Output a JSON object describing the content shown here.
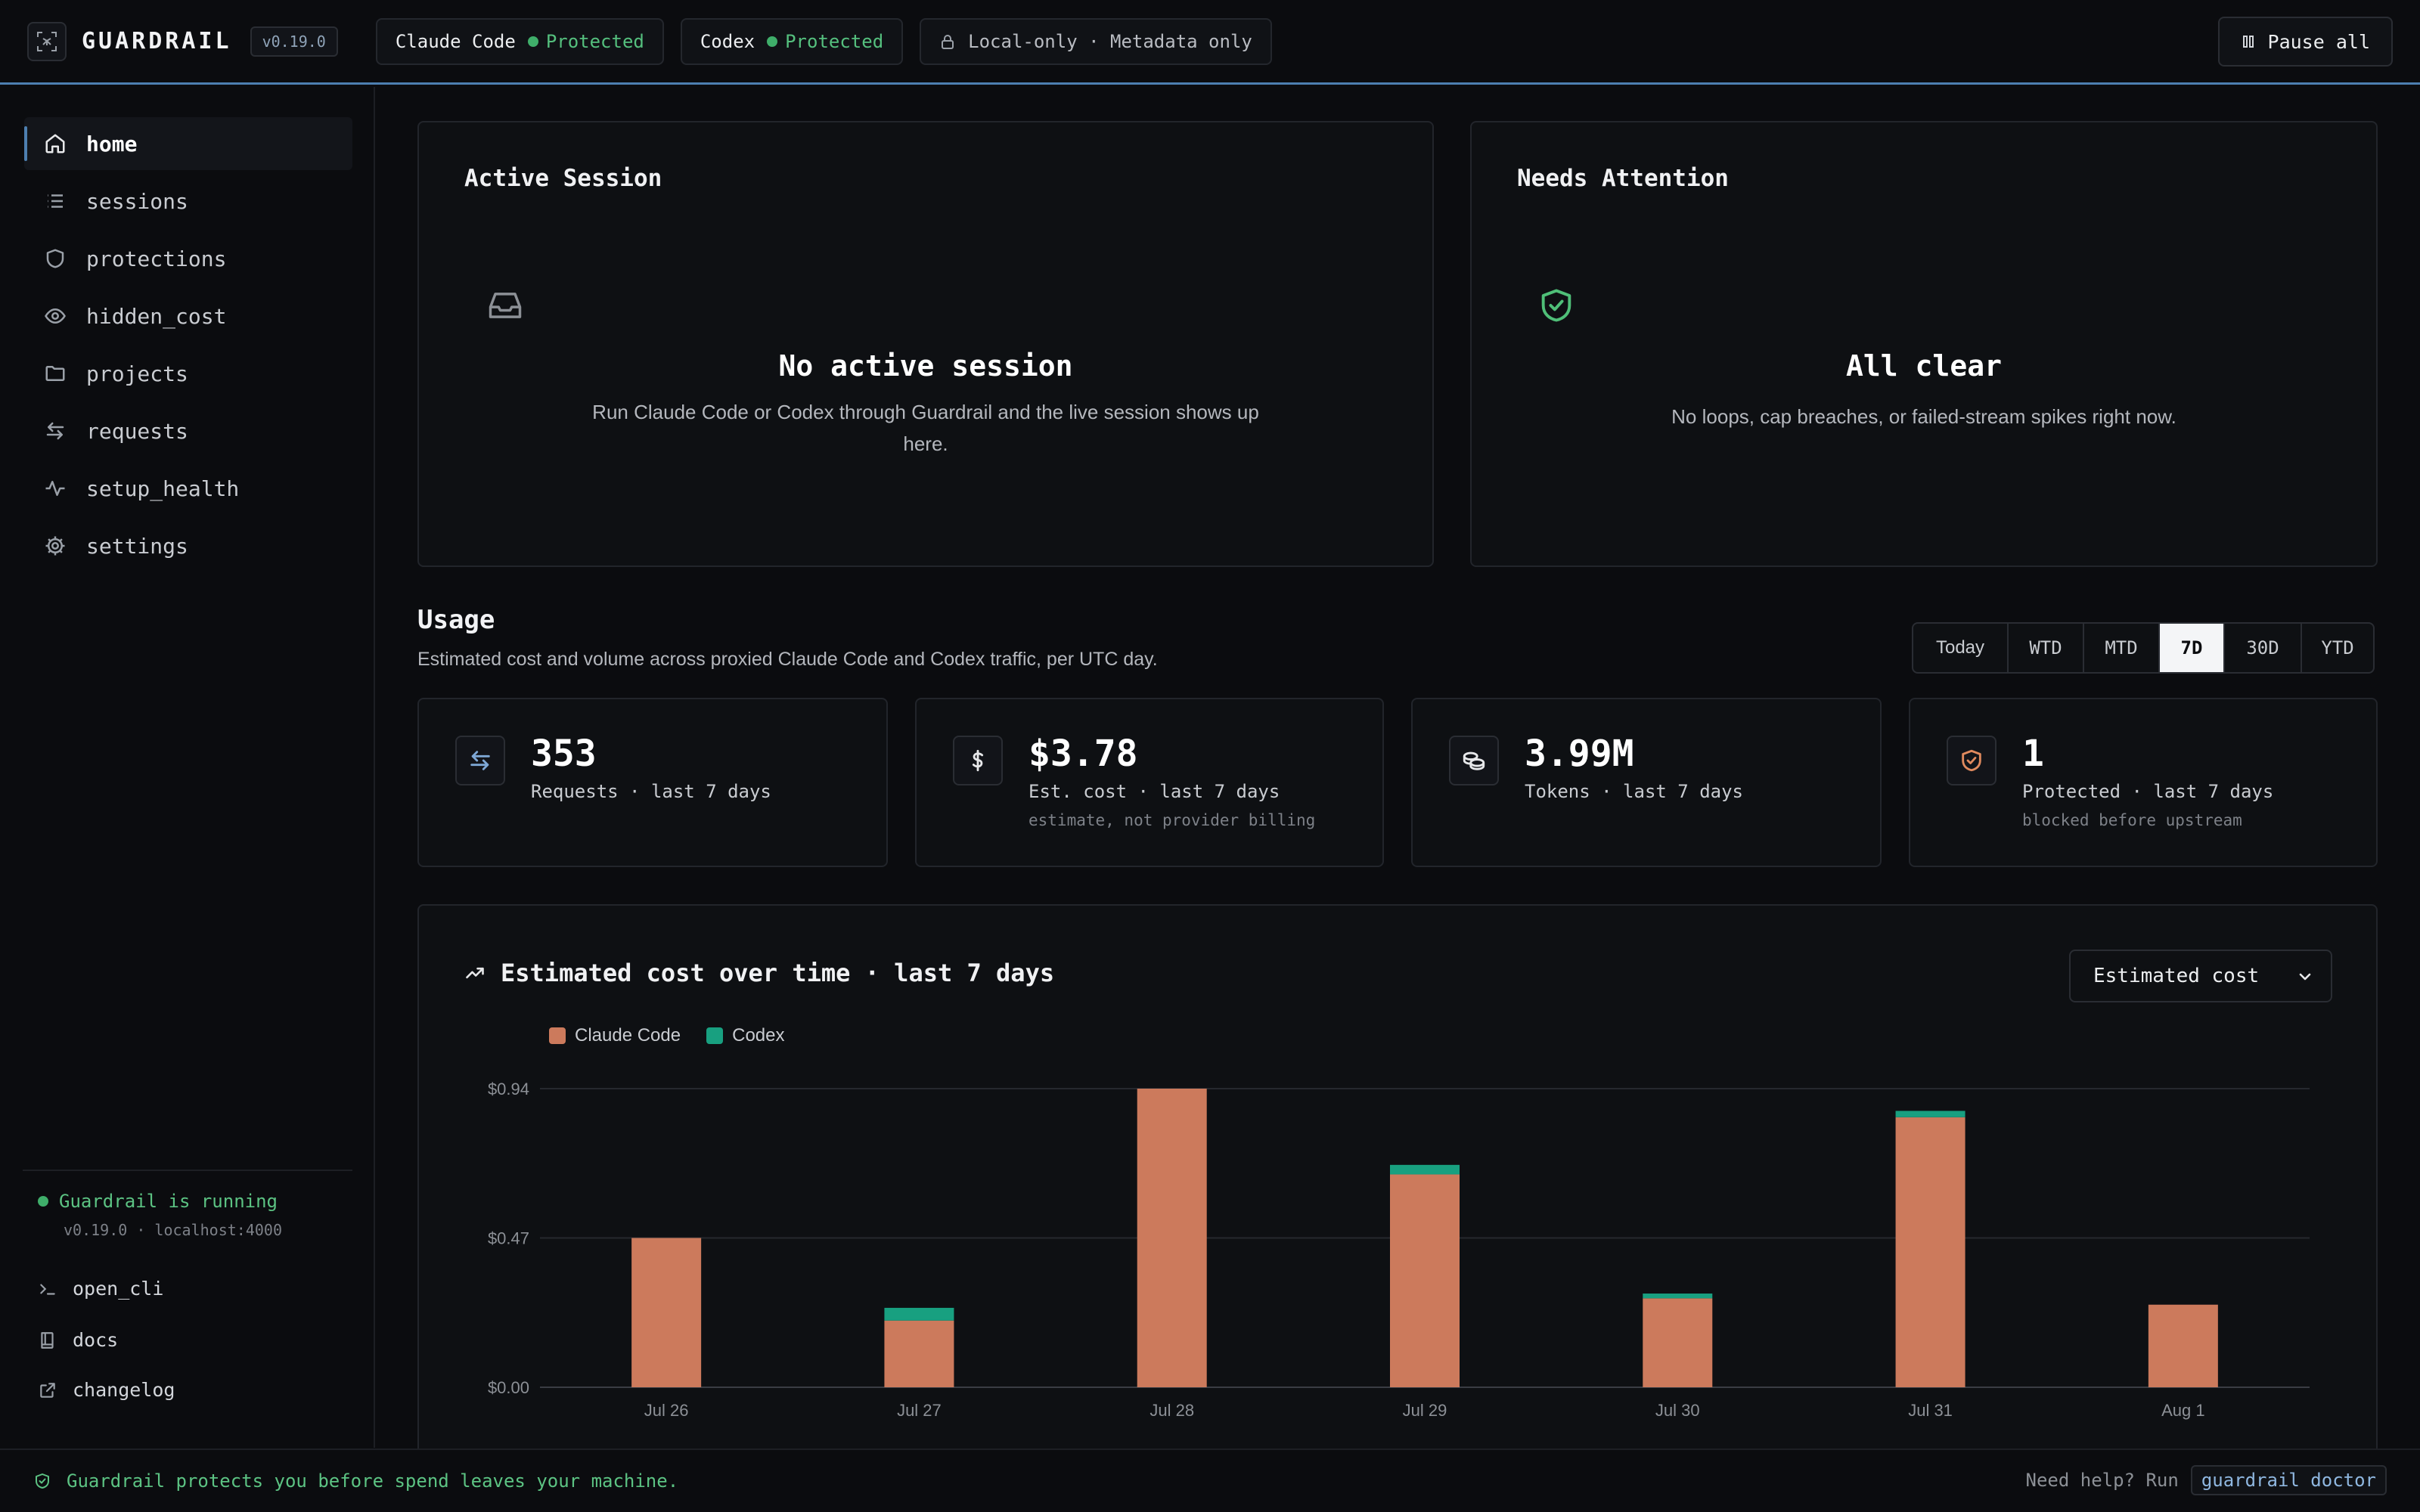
{
  "app": {
    "brand": "GUARDRAIL",
    "version": "v0.19.0",
    "logo_icon": "scan-icon"
  },
  "header": {
    "pills": [
      {
        "name": "Claude Code",
        "state": "Protected"
      },
      {
        "name": "Codex",
        "state": "Protected"
      }
    ],
    "privacy": "Local-only · Metadata only",
    "pause_label": "Pause all"
  },
  "sidebar": {
    "items": [
      {
        "label": "home",
        "icon": "home-icon",
        "active": true
      },
      {
        "label": "sessions",
        "icon": "list-icon"
      },
      {
        "label": "protections",
        "icon": "shield-icon"
      },
      {
        "label": "hidden_cost",
        "icon": "eye-icon"
      },
      {
        "label": "projects",
        "icon": "folder-icon"
      },
      {
        "label": "requests",
        "icon": "arrows-icon"
      },
      {
        "label": "setup_health",
        "icon": "pulse-icon"
      },
      {
        "label": "settings",
        "icon": "gear-icon"
      }
    ],
    "status": "Guardrail is running",
    "status_sub": "v0.19.0 · localhost:4000",
    "links": [
      {
        "label": "open_cli",
        "icon": "terminal-icon"
      },
      {
        "label": "docs",
        "icon": "book-icon"
      },
      {
        "label": "changelog",
        "icon": "external-link-icon"
      }
    ]
  },
  "active_session": {
    "title": "Active Session",
    "empty_title": "No active session",
    "empty_text": "Run Claude Code or Codex through Guardrail and the live session shows up here."
  },
  "attention": {
    "title": "Needs Attention",
    "empty_title": "All clear",
    "empty_text": "No loops, cap breaches, or failed-stream spikes right now."
  },
  "usage": {
    "title": "Usage",
    "subtitle": "Estimated cost and volume across proxied Claude Code and Codex traffic, per UTC day.",
    "ranges": [
      "Today",
      "WTD",
      "MTD",
      "7D",
      "30D",
      "YTD"
    ],
    "active_range": "7D",
    "stats": [
      {
        "value": "353",
        "label": "Requests · last 7 days",
        "note": "",
        "icon": "arrows-icon"
      },
      {
        "value": "$3.78",
        "label": "Est. cost · last 7 days",
        "note": "estimate, not provider billing",
        "icon": "dollar-icon"
      },
      {
        "value": "3.99M",
        "label": "Tokens · last 7 days",
        "note": "",
        "icon": "coins-icon"
      },
      {
        "value": "1",
        "label": "Protected · last 7 days",
        "note": "blocked before upstream",
        "icon": "shield-check-icon"
      }
    ]
  },
  "chart": {
    "title": "Estimated cost over time · last 7 days",
    "metric_select": "Estimated cost"
  },
  "chart_data": {
    "type": "bar",
    "stacked": true,
    "categories": [
      "Jul 26",
      "Jul 27",
      "Jul 28",
      "Jul 29",
      "Jul 30",
      "Jul 31",
      "Aug 1"
    ],
    "series": [
      {
        "name": "Claude Code",
        "color": "#cc7a5c",
        "values": [
          0.47,
          0.21,
          0.94,
          0.67,
          0.28,
          0.85,
          0.26
        ]
      },
      {
        "name": "Codex",
        "color": "#18a080",
        "values": [
          0.0,
          0.04,
          0.0,
          0.03,
          0.015,
          0.02,
          0.0
        ]
      }
    ],
    "y_ticks": [
      "$0.94",
      "$0.47",
      "$0.00"
    ],
    "ylim": [
      0,
      0.94
    ],
    "grid": true,
    "legend": "top-left"
  },
  "footer": {
    "message": "Guardrail protects you before spend leaves your machine.",
    "help_prefix": "Need help? Run",
    "help_cmd": "guardrail doctor"
  }
}
